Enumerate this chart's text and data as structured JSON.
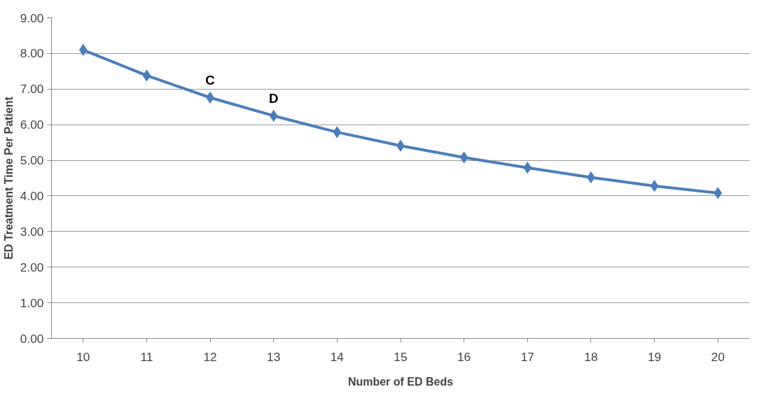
{
  "chart_data": {
    "type": "line",
    "xlabel": "Number of ED Beds",
    "ylabel": "ED Treatment Time Per Patient",
    "categories": [
      "10",
      "11",
      "12",
      "13",
      "14",
      "15",
      "16",
      "17",
      "18",
      "19",
      "20"
    ],
    "series": [
      {
        "color": "#4a7ebb",
        "values": [
          8.1,
          7.38,
          6.76,
          6.25,
          5.79,
          5.41,
          5.08,
          4.79,
          4.52,
          4.28,
          4.08
        ]
      }
    ],
    "ylim": [
      0,
      9
    ],
    "yticks": [
      {
        "value": 0,
        "label": "0.00"
      },
      {
        "value": 1,
        "label": "1.00"
      },
      {
        "value": 2,
        "label": "2.00"
      },
      {
        "value": 3,
        "label": "3.00"
      },
      {
        "value": 4,
        "label": "4.00"
      },
      {
        "value": 5,
        "label": "5.00"
      },
      {
        "value": 6,
        "label": "6.00"
      },
      {
        "value": 7,
        "label": "7.00"
      },
      {
        "value": 8,
        "label": "8.00"
      },
      {
        "value": 9,
        "label": "9.00"
      }
    ],
    "annotations": [
      {
        "text": "C",
        "x": "12",
        "y": 6.76
      },
      {
        "text": "D",
        "x": "13",
        "y": 6.25
      }
    ],
    "grid": "y",
    "marker": "diamond",
    "line_style": "solid"
  }
}
